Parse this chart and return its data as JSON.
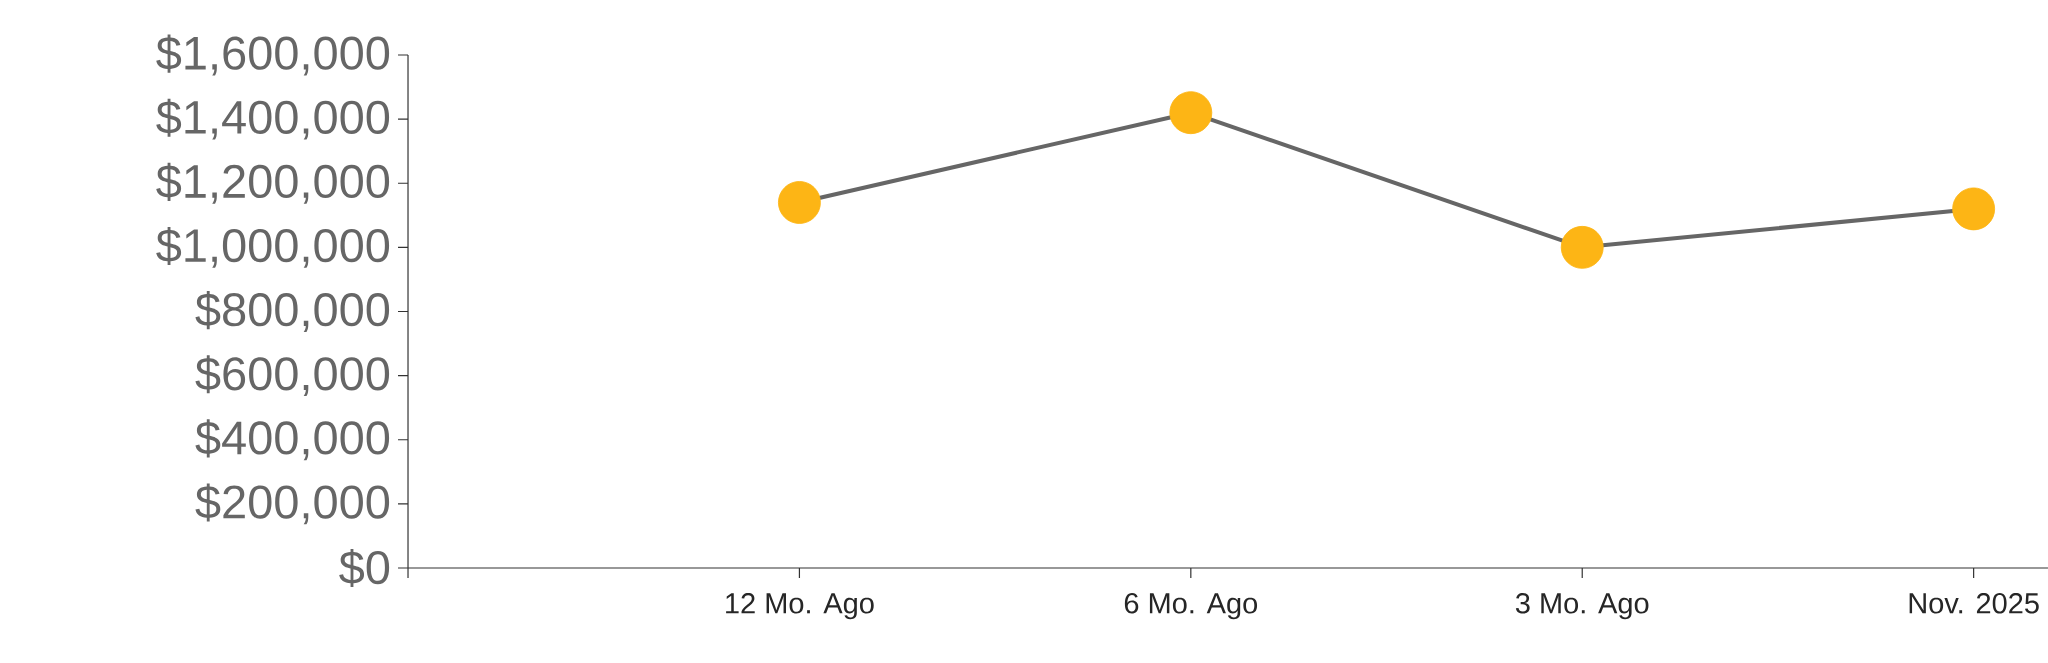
{
  "chart_data": {
    "type": "line",
    "categories": [
      null,
      "12 Mo. Ago",
      "6 Mo. Ago",
      "3 Mo. Ago",
      "Nov. 2025"
    ],
    "series": [
      {
        "color": "#666666",
        "colors": [
          "#fdb515",
          "#fdb515",
          "#fdb515",
          "#fdb515",
          "#fdb515"
        ],
        "values": [
          null,
          1140000,
          1420000,
          1000000,
          1120000
        ]
      }
    ],
    "marker": "circle",
    "line_style": "solid",
    "ylim": [
      0,
      1600000
    ],
    "yticks": [
      {
        "value": 0,
        "label": "$0"
      },
      {
        "value": 200000,
        "label": "$200,000"
      },
      {
        "value": 400000,
        "label": "$400,000"
      },
      {
        "value": 600000,
        "label": "$600,000"
      },
      {
        "value": 800000,
        "label": "$800,000"
      },
      {
        "value": 1000000,
        "label": "$1,000,000"
      },
      {
        "value": 1200000,
        "label": "$1,200,000"
      },
      {
        "value": 1400000,
        "label": "$1,400,000"
      },
      {
        "value": 1600000,
        "label": "$1,600,000"
      }
    ]
  }
}
